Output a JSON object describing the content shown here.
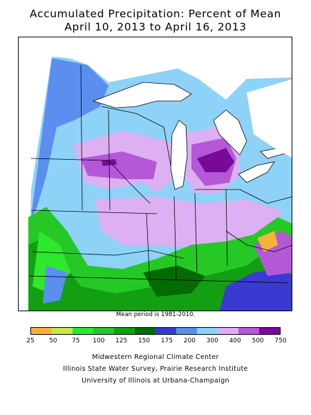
{
  "title": {
    "line1": "Accumulated Precipitation: Percent of Mean",
    "line2": "April 10, 2013 to April 16, 2013"
  },
  "note": "Mean period is 1981-2010.",
  "legend": {
    "labels": [
      "25",
      "50",
      "75",
      "100",
      "125",
      "150",
      "175",
      "200",
      "300",
      "400",
      "500",
      "750"
    ],
    "colors": [
      "#f7b338",
      "#c8e84a",
      "#2ee82e",
      "#26c826",
      "#12a012",
      "#046a04",
      "#3a3ad2",
      "#5c8ef0",
      "#8ed2f8",
      "#dcb0f2",
      "#b458d8",
      "#780a98"
    ]
  },
  "credits": {
    "line1": "Midwestern Regional Climate Center",
    "line2": "Illinois State Water Survey, Prairie Research Institute",
    "line3": "University of Illinois at Urbana-Champaign"
  }
}
